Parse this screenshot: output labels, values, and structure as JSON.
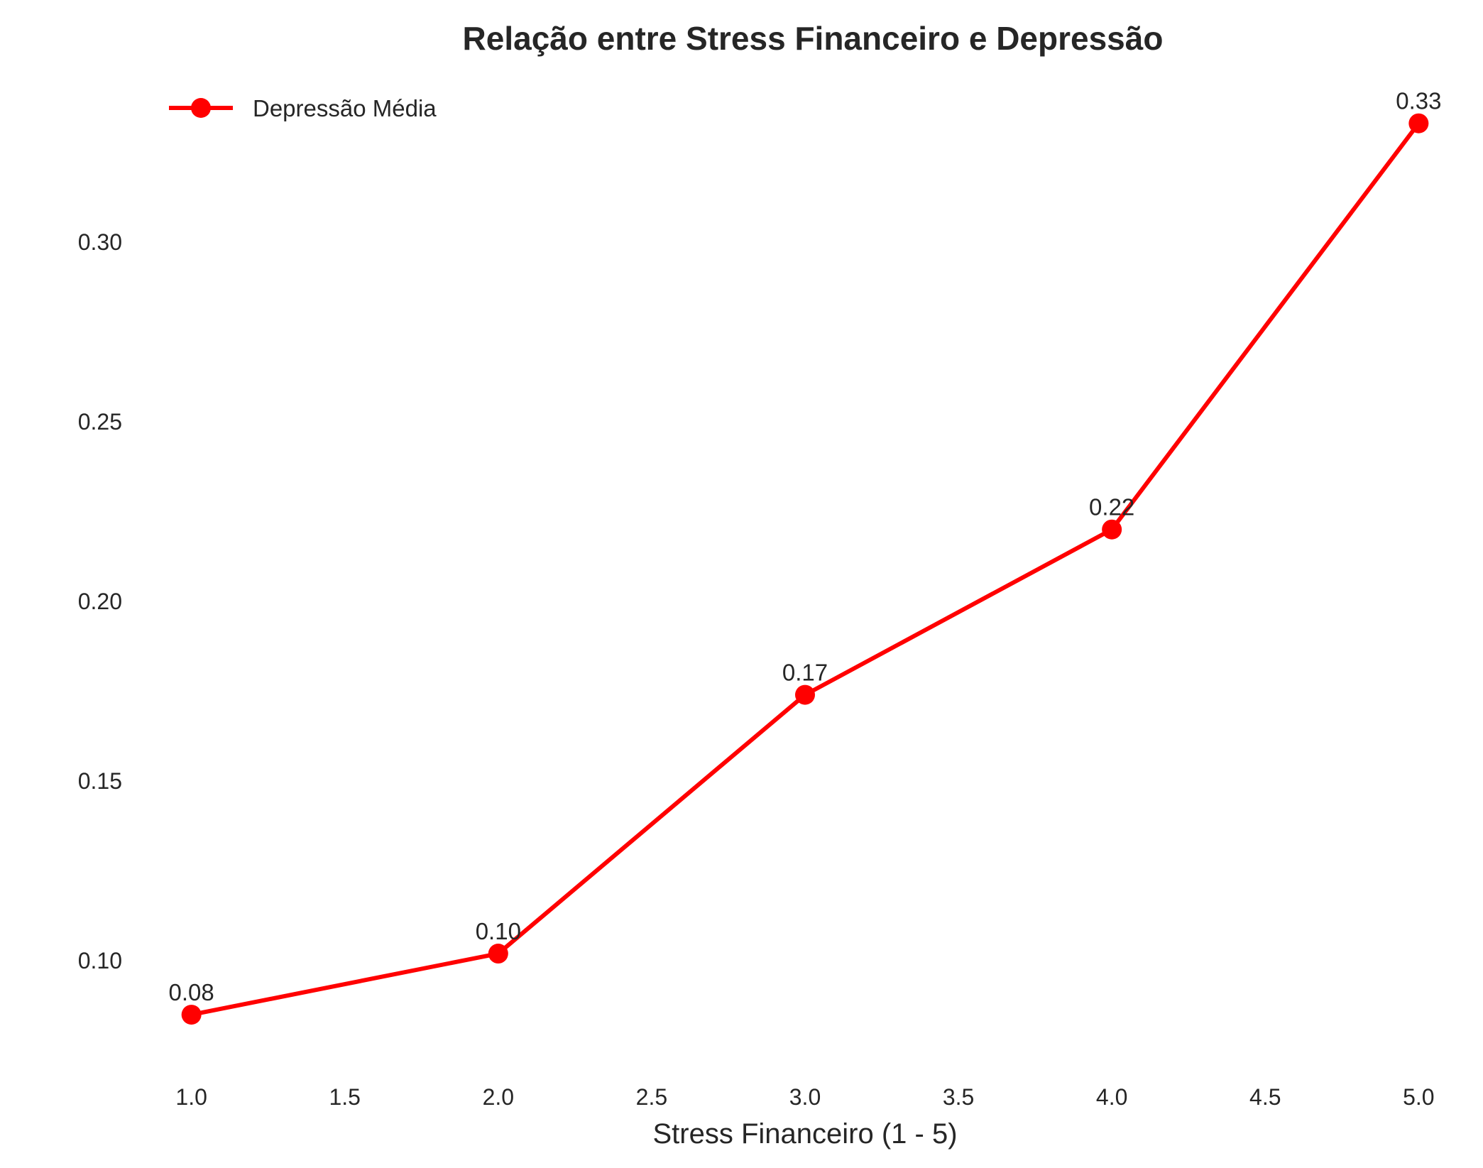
{
  "chart_data": {
    "type": "line",
    "title": "Relação entre Stress Financeiro e Depressão",
    "xlabel": "Stress Financeiro (1 - 5)",
    "ylabel": "",
    "x": [
      1,
      2,
      3,
      4,
      5
    ],
    "series": [
      {
        "name": "Depressão Média",
        "values": [
          0.085,
          0.102,
          0.174,
          0.22,
          0.333
        ],
        "data_labels": [
          "0.08",
          "0.10",
          "0.17",
          "0.22",
          "0.33"
        ],
        "color": "#ff0000",
        "marker": "circle"
      }
    ],
    "xlim": [
      0.98,
      5.02
    ],
    "ylim": [
      0.07,
      0.345
    ],
    "xticks": [
      {
        "value": 1.0,
        "label": "1.0"
      },
      {
        "value": 1.5,
        "label": "1.5"
      },
      {
        "value": 2.0,
        "label": "2.0"
      },
      {
        "value": 2.5,
        "label": "2.5"
      },
      {
        "value": 3.0,
        "label": "3.0"
      },
      {
        "value": 3.5,
        "label": "3.5"
      },
      {
        "value": 4.0,
        "label": "4.0"
      },
      {
        "value": 4.5,
        "label": "4.5"
      },
      {
        "value": 5.0,
        "label": "5.0"
      }
    ],
    "yticks": [
      {
        "value": 0.1,
        "label": "0.10"
      },
      {
        "value": 0.15,
        "label": "0.15"
      },
      {
        "value": 0.2,
        "label": "0.20"
      },
      {
        "value": 0.25,
        "label": "0.25"
      },
      {
        "value": 0.3,
        "label": "0.30"
      }
    ],
    "grid": false,
    "legend_position": "top-left",
    "text_color": "#262626"
  }
}
